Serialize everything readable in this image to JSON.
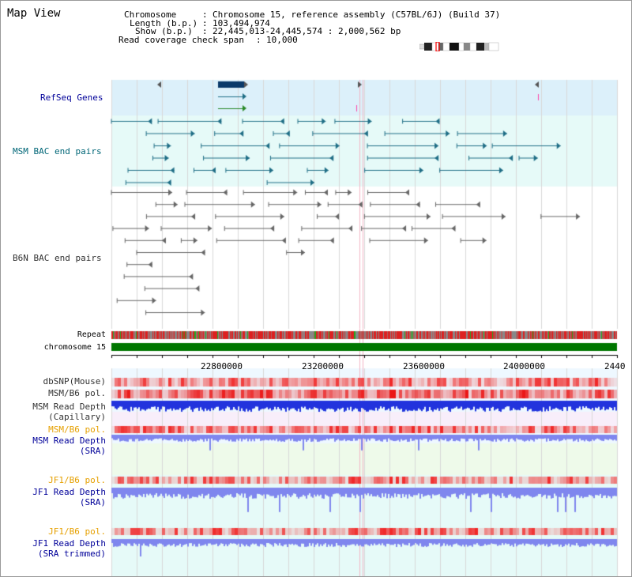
{
  "header": {
    "title": "Map View",
    "chromosome_label": "Chromosome",
    "chromosome_value": "Chromosome 15, reference assembly (C57BL/6J) (Build 37)",
    "length_label": "Length (b.p.)",
    "length_value": "103,494,974",
    "show_label": "Show (b.p.)",
    "show_value": "22,445,013-24,445,574 : 2,000,562 bp",
    "read_coverage_label": "Read coverage check span",
    "read_coverage_value": "10,000"
  },
  "tracks": {
    "refseq": "RefSeq Genes",
    "msm_bac": "MSM BAC end pairs",
    "b6n_bac": "B6N BAC end pairs",
    "repeat": "Repeat",
    "chromosome": "chromosome 15",
    "dbsnp": "dbSNP(Mouse)",
    "msm_b6_pol_1": "MSM/B6 pol.",
    "msm_read_depth_cap_1": "MSM Read Depth",
    "msm_read_depth_cap_2": "(Capillary)",
    "msm_b6_pol_2": "MSM/B6 pol.",
    "msm_read_depth_sra_1": "MSM Read Depth",
    "msm_read_depth_sra_2": "(SRA)",
    "jf1_b6_pol_1": "JF1/B6 pol.",
    "jf1_read_depth_sra_1": "JF1 Read Depth",
    "jf1_read_depth_sra_2": "(SRA)",
    "jf1_b6_pol_2": "JF1/B6 pol.",
    "jf1_read_depth_trim_1": "JF1 Read Depth",
    "jf1_read_depth_trim_2": "(SRA trimmed)"
  },
  "axis": {
    "ticks": [
      "22800000",
      "23200000",
      "23600000",
      "24000000",
      "2440"
    ]
  },
  "colors": {
    "refseq_bg": "#dcf0fa",
    "msm_bg": "#e6faf8",
    "b6n_bg": "#ffffff",
    "navy_label": "#000099",
    "teal_label": "#006677",
    "orange_label": "#e6a000",
    "chromosome_bar": "#007700",
    "msm_line": "#1f6e86",
    "b6n_line": "#666666",
    "capillary_depth": "#2233dd",
    "sra_depth": "#7f86ee"
  }
}
